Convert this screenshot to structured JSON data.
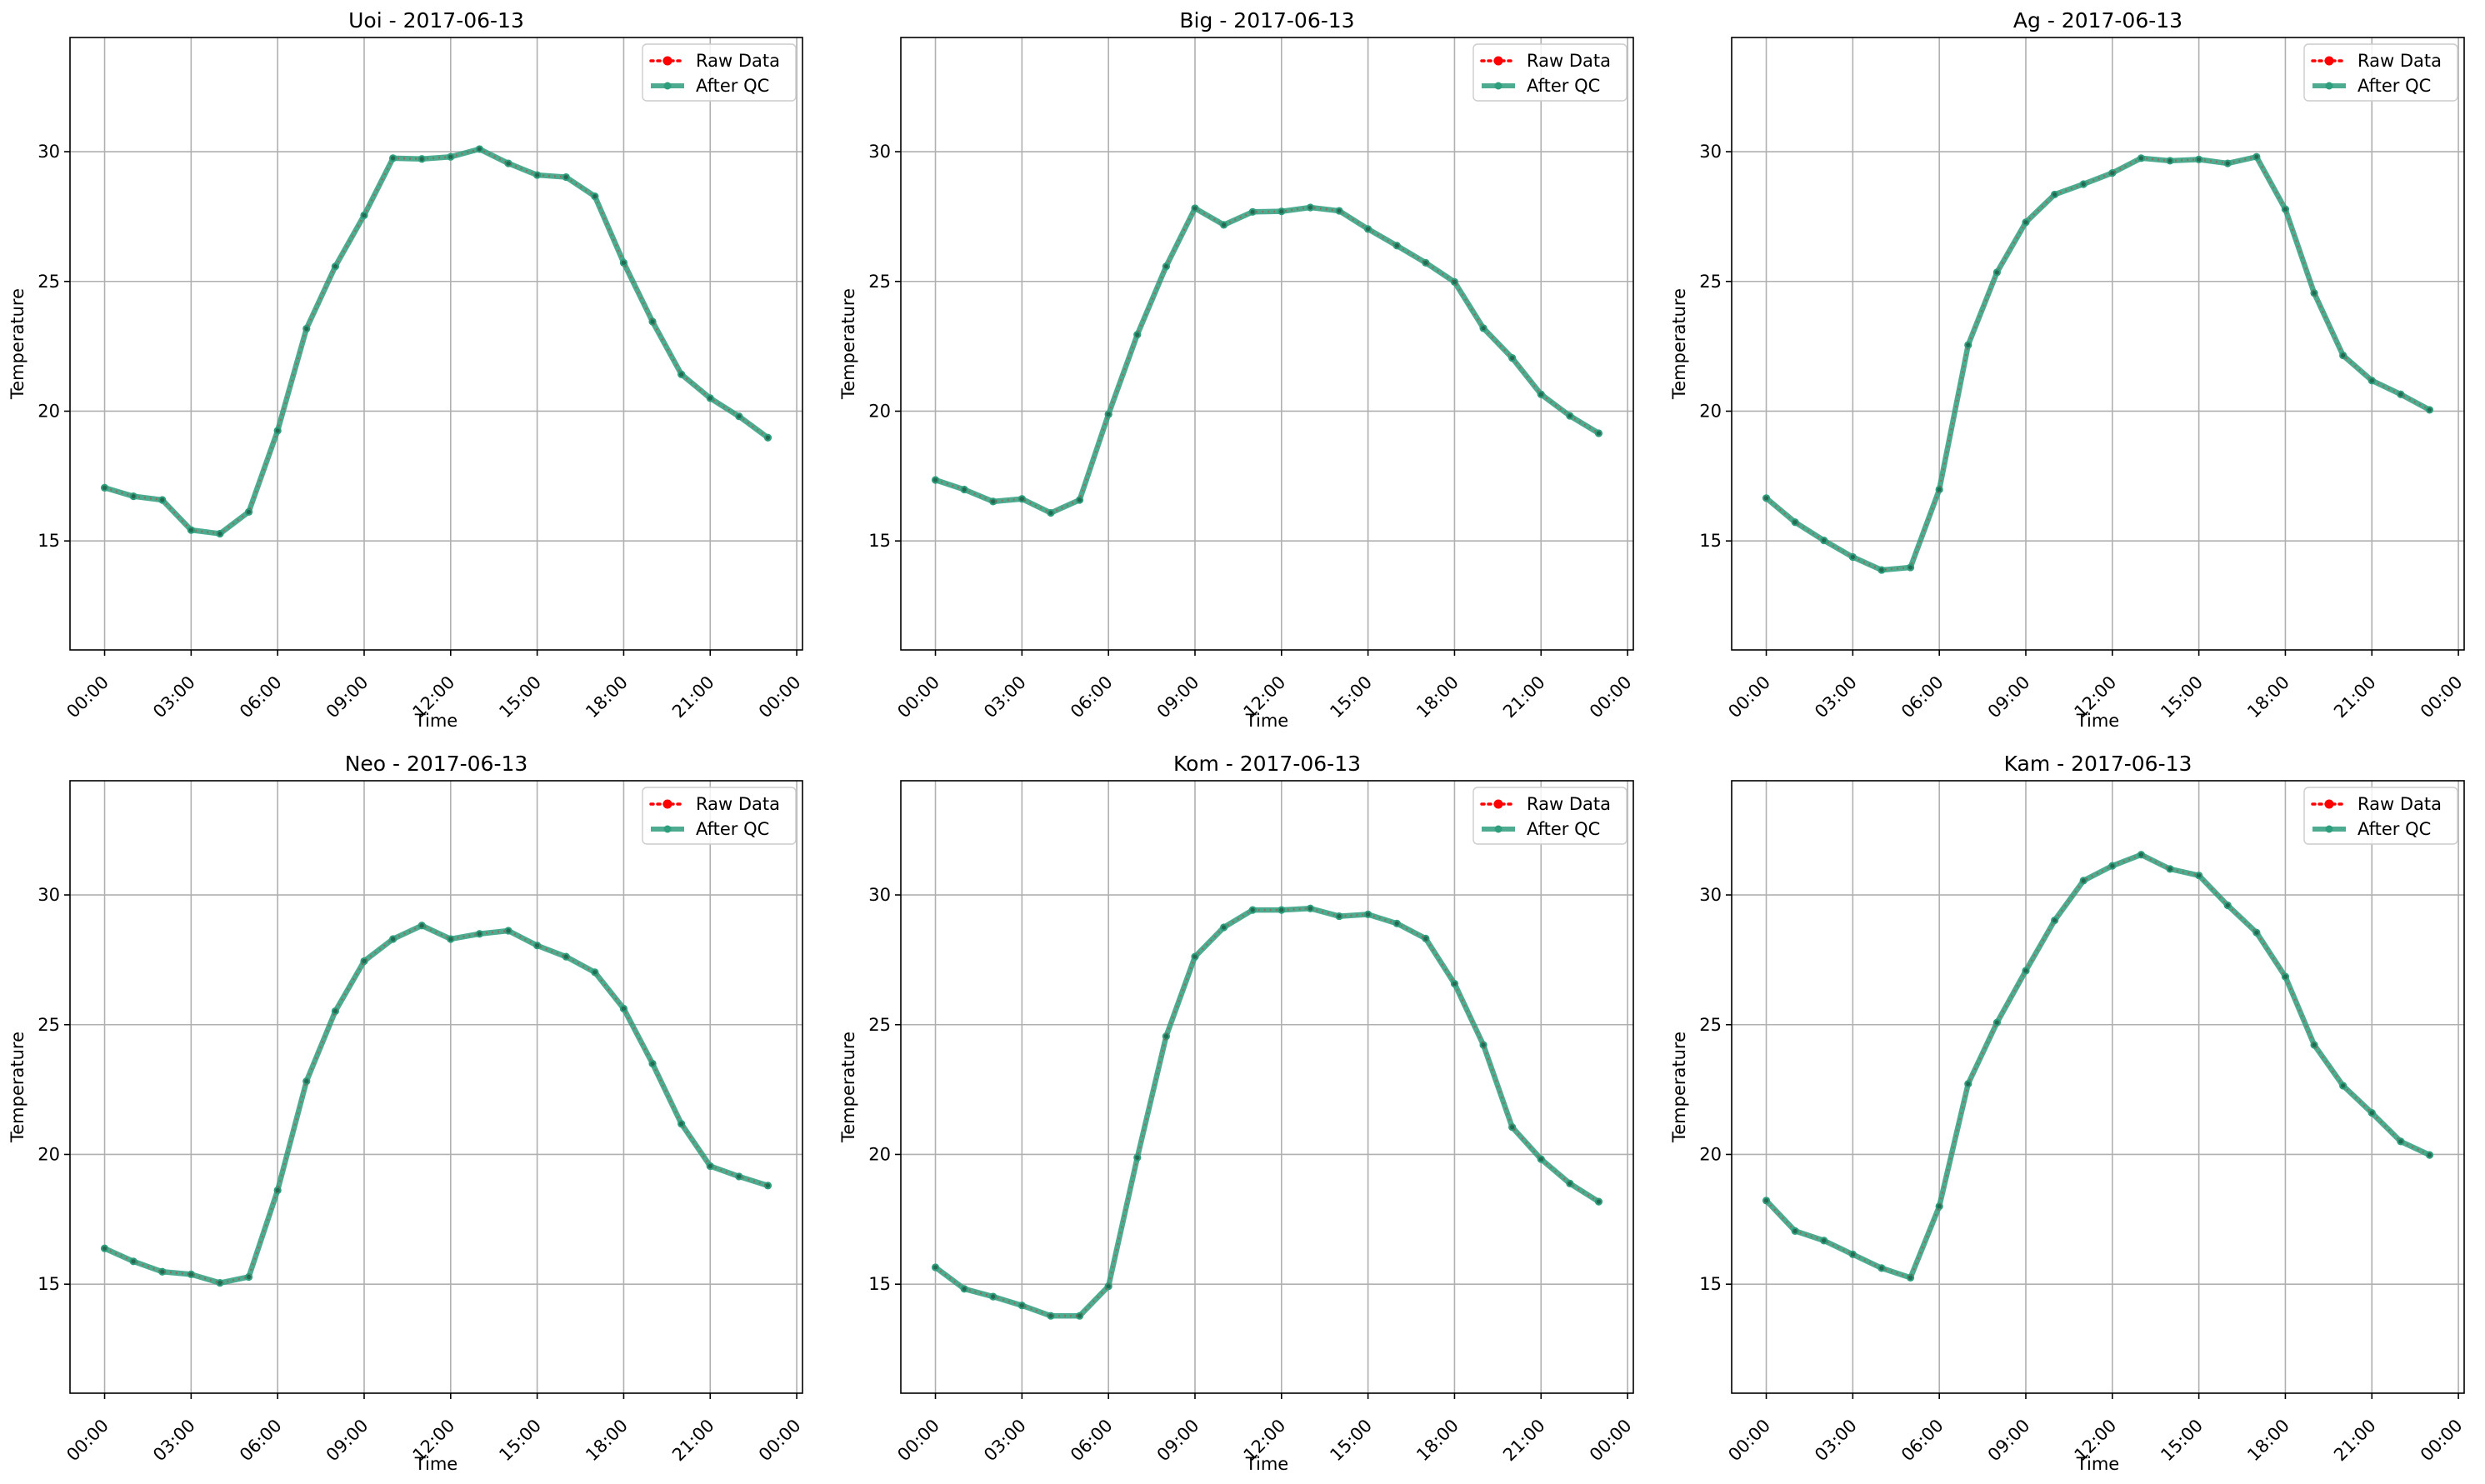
{
  "colors": {
    "raw": "#ff0000",
    "qc": "#2e9e7c",
    "grid": "#b0b0b0",
    "axis": "#000000",
    "background": "#ffffff"
  },
  "chart_data": [
    {
      "type": "line",
      "title": "Uoi - 2017-06-13",
      "xlabel": "Time",
      "ylabel": "Temperature",
      "x_ticks": [
        "00:00",
        "03:00",
        "06:00",
        "09:00",
        "12:00",
        "15:00",
        "18:00",
        "21:00",
        "00:00"
      ],
      "y_ticks": [
        15,
        20,
        25,
        30
      ],
      "xlim": [
        -1.2,
        24.2
      ],
      "ylim": [
        10.8,
        34.4
      ],
      "grid": true,
      "legend": "upper right",
      "x": [
        0,
        1,
        2,
        3,
        4,
        5,
        6,
        7,
        8,
        9,
        10,
        11,
        12,
        13,
        14,
        15,
        16,
        17,
        18,
        19,
        20,
        21,
        22,
        23
      ],
      "series": [
        {
          "name": "Raw Data",
          "style": "dotted-marker",
          "values": [
            17.05,
            16.72,
            16.58,
            15.42,
            15.28,
            16.12,
            19.25,
            23.18,
            25.58,
            27.55,
            29.75,
            29.72,
            29.8,
            30.1,
            29.55,
            29.1,
            29.02,
            28.28,
            25.72,
            23.45,
            21.42,
            20.5,
            19.8,
            18.98
          ]
        },
        {
          "name": "After QC",
          "style": "solid-marker",
          "values": [
            17.05,
            16.72,
            16.58,
            15.42,
            15.28,
            16.12,
            19.25,
            23.18,
            25.58,
            27.55,
            29.75,
            29.72,
            29.8,
            30.1,
            29.55,
            29.1,
            29.02,
            28.28,
            25.72,
            23.45,
            21.42,
            20.5,
            19.8,
            18.98
          ]
        }
      ]
    },
    {
      "type": "line",
      "title": "Big - 2017-06-13",
      "xlabel": "Time",
      "ylabel": "Temperature",
      "x_ticks": [
        "00:00",
        "03:00",
        "06:00",
        "09:00",
        "12:00",
        "15:00",
        "18:00",
        "21:00",
        "00:00"
      ],
      "y_ticks": [
        15,
        20,
        25,
        30
      ],
      "xlim": [
        -1.2,
        24.2
      ],
      "ylim": [
        10.8,
        34.4
      ],
      "grid": true,
      "legend": "upper right",
      "x": [
        0,
        1,
        2,
        3,
        4,
        5,
        6,
        7,
        8,
        9,
        10,
        11,
        12,
        13,
        14,
        15,
        16,
        17,
        18,
        19,
        20,
        21,
        22,
        23
      ],
      "series": [
        {
          "name": "Raw Data",
          "style": "dotted-marker",
          "values": [
            17.35,
            16.98,
            16.52,
            16.62,
            16.08,
            16.58,
            19.88,
            22.95,
            25.58,
            27.82,
            27.18,
            27.68,
            27.7,
            27.85,
            27.72,
            27.02,
            26.38,
            25.72,
            24.98,
            23.2,
            22.05,
            20.65,
            19.82,
            19.15
          ]
        },
        {
          "name": "After QC",
          "style": "solid-marker",
          "values": [
            17.35,
            16.98,
            16.52,
            16.62,
            16.08,
            16.58,
            19.88,
            22.95,
            25.58,
            27.82,
            27.18,
            27.68,
            27.7,
            27.85,
            27.72,
            27.02,
            26.38,
            25.72,
            24.98,
            23.2,
            22.05,
            20.65,
            19.82,
            19.15
          ]
        }
      ]
    },
    {
      "type": "line",
      "title": "Ag - 2017-06-13",
      "xlabel": "Time",
      "ylabel": "Temperature",
      "x_ticks": [
        "00:00",
        "03:00",
        "06:00",
        "09:00",
        "12:00",
        "15:00",
        "18:00",
        "21:00",
        "00:00"
      ],
      "y_ticks": [
        15,
        20,
        25,
        30
      ],
      "xlim": [
        -1.2,
        24.2
      ],
      "ylim": [
        10.8,
        34.4
      ],
      "grid": true,
      "legend": "upper right",
      "x": [
        0,
        1,
        2,
        3,
        4,
        5,
        6,
        7,
        8,
        9,
        10,
        11,
        12,
        13,
        14,
        15,
        16,
        17,
        18,
        19,
        20,
        21,
        22,
        23
      ],
      "series": [
        {
          "name": "Raw Data",
          "style": "dotted-marker",
          "values": [
            16.65,
            15.72,
            15.02,
            14.38,
            13.88,
            13.98,
            16.98,
            22.55,
            25.35,
            27.28,
            28.35,
            28.75,
            29.18,
            29.75,
            29.65,
            29.7,
            29.55,
            29.8,
            27.78,
            24.55,
            22.15,
            21.18,
            20.65,
            20.05
          ]
        },
        {
          "name": "After QC",
          "style": "solid-marker",
          "values": [
            16.65,
            15.72,
            15.02,
            14.38,
            13.88,
            13.98,
            16.98,
            22.55,
            25.35,
            27.28,
            28.35,
            28.75,
            29.18,
            29.75,
            29.65,
            29.7,
            29.55,
            29.8,
            27.78,
            24.55,
            22.15,
            21.18,
            20.65,
            20.05
          ]
        }
      ]
    },
    {
      "type": "line",
      "title": "Neo - 2017-06-13",
      "xlabel": "Time",
      "ylabel": "Temperature",
      "x_ticks": [
        "00:00",
        "03:00",
        "06:00",
        "09:00",
        "12:00",
        "15:00",
        "18:00",
        "21:00",
        "00:00"
      ],
      "y_ticks": [
        15,
        20,
        25,
        30
      ],
      "xlim": [
        -1.2,
        24.2
      ],
      "ylim": [
        10.8,
        34.4
      ],
      "grid": true,
      "legend": "upper right",
      "x": [
        0,
        1,
        2,
        3,
        4,
        5,
        6,
        7,
        8,
        9,
        10,
        11,
        12,
        13,
        14,
        15,
        16,
        17,
        18,
        19,
        20,
        21,
        22,
        23
      ],
      "series": [
        {
          "name": "Raw Data",
          "style": "dotted-marker",
          "values": [
            16.38,
            15.88,
            15.48,
            15.38,
            15.05,
            15.28,
            18.62,
            22.82,
            25.52,
            27.45,
            28.3,
            28.82,
            28.3,
            28.5,
            28.62,
            28.05,
            27.62,
            27.02,
            25.62,
            23.5,
            21.18,
            19.55,
            19.15,
            18.8
          ]
        },
        {
          "name": "After QC",
          "style": "solid-marker",
          "values": [
            16.38,
            15.88,
            15.48,
            15.38,
            15.05,
            15.28,
            18.62,
            22.82,
            25.52,
            27.45,
            28.3,
            28.82,
            28.3,
            28.5,
            28.62,
            28.05,
            27.62,
            27.02,
            25.62,
            23.5,
            21.18,
            19.55,
            19.15,
            18.8
          ]
        }
      ]
    },
    {
      "type": "line",
      "title": "Kom - 2017-06-13",
      "xlabel": "Time",
      "ylabel": "Temperature",
      "x_ticks": [
        "00:00",
        "03:00",
        "06:00",
        "09:00",
        "12:00",
        "15:00",
        "18:00",
        "21:00",
        "00:00"
      ],
      "y_ticks": [
        15,
        20,
        25,
        30
      ],
      "xlim": [
        -1.2,
        24.2
      ],
      "ylim": [
        10.8,
        34.4
      ],
      "grid": true,
      "legend": "upper right",
      "x": [
        0,
        1,
        2,
        3,
        4,
        5,
        6,
        7,
        8,
        9,
        10,
        11,
        12,
        13,
        14,
        15,
        16,
        17,
        18,
        19,
        20,
        21,
        22,
        23
      ],
      "series": [
        {
          "name": "Raw Data",
          "style": "dotted-marker",
          "values": [
            15.65,
            14.82,
            14.52,
            14.18,
            13.78,
            13.78,
            14.92,
            19.88,
            24.55,
            27.62,
            28.75,
            29.42,
            29.42,
            29.48,
            29.18,
            29.25,
            28.9,
            28.32,
            26.58,
            24.22,
            21.05,
            19.82,
            18.88,
            18.18
          ]
        },
        {
          "name": "After QC",
          "style": "solid-marker",
          "values": [
            15.65,
            14.82,
            14.52,
            14.18,
            13.78,
            13.78,
            14.92,
            19.88,
            24.55,
            27.62,
            28.75,
            29.42,
            29.42,
            29.48,
            29.18,
            29.25,
            28.9,
            28.32,
            26.58,
            24.22,
            21.05,
            19.82,
            18.88,
            18.18
          ]
        }
      ]
    },
    {
      "type": "line",
      "title": "Kam - 2017-06-13",
      "xlabel": "Time",
      "ylabel": "Temperature",
      "x_ticks": [
        "00:00",
        "03:00",
        "06:00",
        "09:00",
        "12:00",
        "15:00",
        "18:00",
        "21:00",
        "00:00"
      ],
      "y_ticks": [
        15,
        20,
        25,
        30
      ],
      "xlim": [
        -1.2,
        24.2
      ],
      "ylim": [
        10.8,
        34.4
      ],
      "grid": true,
      "legend": "upper right",
      "x": [
        0,
        1,
        2,
        3,
        4,
        5,
        6,
        7,
        8,
        9,
        10,
        11,
        12,
        13,
        14,
        15,
        16,
        17,
        18,
        19,
        20,
        21,
        22,
        23
      ],
      "series": [
        {
          "name": "Raw Data",
          "style": "dotted-marker",
          "values": [
            18.22,
            17.05,
            16.68,
            16.15,
            15.62,
            15.25,
            18.0,
            22.72,
            25.08,
            27.08,
            29.02,
            30.55,
            31.12,
            31.55,
            31.0,
            30.75,
            29.6,
            28.55,
            26.85,
            24.22,
            22.65,
            21.6,
            20.5,
            19.98
          ]
        },
        {
          "name": "After QC",
          "style": "solid-marker",
          "values": [
            18.22,
            17.05,
            16.68,
            16.15,
            15.62,
            15.25,
            18.0,
            22.72,
            25.08,
            27.08,
            29.02,
            30.55,
            31.12,
            31.55,
            31.0,
            30.75,
            29.6,
            28.55,
            26.85,
            24.22,
            22.65,
            21.6,
            20.5,
            19.98
          ]
        }
      ]
    }
  ]
}
